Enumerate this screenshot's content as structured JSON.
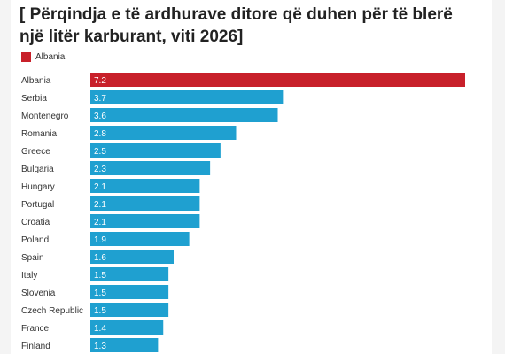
{
  "title": "[ Përqindja e të ardhurave ditore që duhen për të blerë një litër karburant, viti 2026]",
  "legend": {
    "label": "Albania",
    "color": "#c8202a"
  },
  "colors": {
    "highlight": "#c8202a",
    "default": "#1fa0d0",
    "label_text": "#ffffff",
    "category_text": "#333333"
  },
  "chart_data": {
    "type": "bar",
    "orientation": "horizontal",
    "title": "[ Përqindja e të ardhurave ditore që duhen për të blerë një litër karburant, viti 2026]",
    "categories": [
      "Albania",
      "Serbia",
      "Montenegro",
      "Romania",
      "Greece",
      "Bulgaria",
      "Hungary",
      "Portugal",
      "Croatia",
      "Poland",
      "Spain",
      "Italy",
      "Slovenia",
      "Czech Republic",
      "France",
      "Finland"
    ],
    "values": [
      7.2,
      3.7,
      3.6,
      2.8,
      2.5,
      2.3,
      2.1,
      2.1,
      2.1,
      1.9,
      1.6,
      1.5,
      1.5,
      1.5,
      1.4,
      1.3
    ],
    "value_labels": [
      "7.2",
      "3.7",
      "3.6",
      "2.8",
      "2.5",
      "2.3",
      "2.1",
      "2.1",
      "2.1",
      "1.9",
      "1.6",
      "1.5",
      "1.5",
      "1.5",
      "1.4",
      "1.3"
    ],
    "highlight": "Albania",
    "xlim": [
      0,
      7.2
    ],
    "grid": false,
    "legend_position": "top-left",
    "xlabel": "",
    "ylabel": ""
  }
}
